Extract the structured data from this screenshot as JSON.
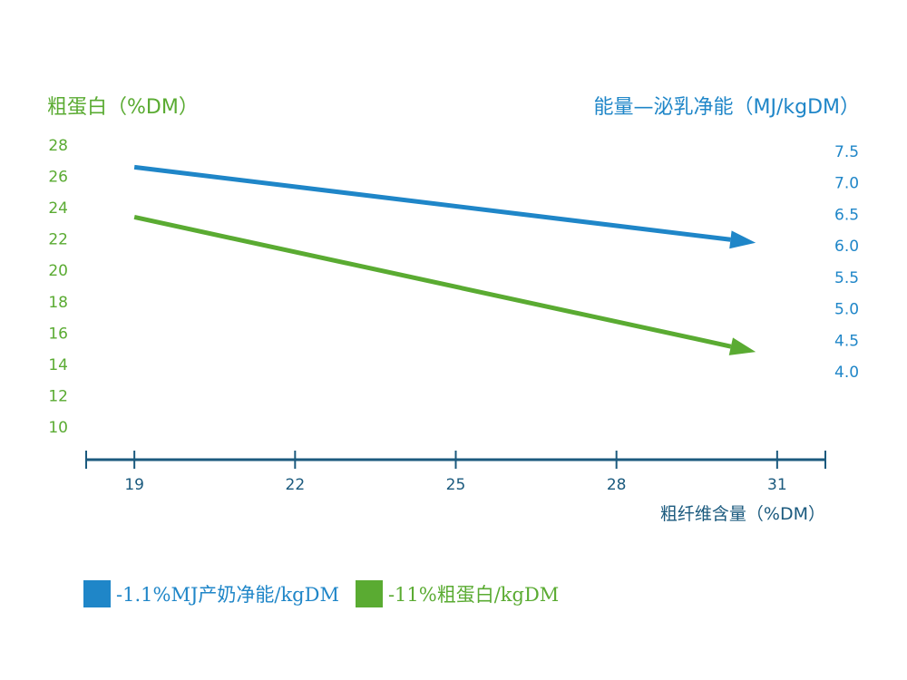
{
  "chart_data": {
    "type": "line",
    "left_axis_title": "粗蛋白（%DM）",
    "right_axis_title": "能量—泌乳净能（MJ/kgDM）",
    "x_axis_title": "粗纤维含量（%DM）",
    "x_ticks": [
      "19",
      "22",
      "25",
      "28",
      "31"
    ],
    "left_ticks": [
      "10",
      "12",
      "14",
      "16",
      "18",
      "20",
      "22",
      "24",
      "26",
      "28"
    ],
    "right_ticks": [
      "4.0",
      "4.5",
      "5.0",
      "5.5",
      "6.0",
      "6.5",
      "7.0",
      "7.5"
    ],
    "xlim": [
      18.1,
      31.9
    ],
    "left_ylim": [
      10,
      28
    ],
    "right_ylim": [
      4.0,
      7.5
    ],
    "series": [
      {
        "name": "-1.1%MJ产奶净能/kgDM",
        "axis": "right",
        "color": "#1f86c8",
        "x": [
          19,
          30.6
        ],
        "y": [
          7.25,
          6.05
        ]
      },
      {
        "name": "-11%粗蛋白/kgDM",
        "axis": "left",
        "color": "#5aab32",
        "x": [
          19,
          30.6
        ],
        "y": [
          23.4,
          14.8
        ]
      }
    ],
    "grid": true,
    "legend_position": "bottom-left"
  },
  "colors": {
    "green": "#5aab32",
    "blue": "#1f86c8",
    "axis": "#1b5a7e"
  }
}
